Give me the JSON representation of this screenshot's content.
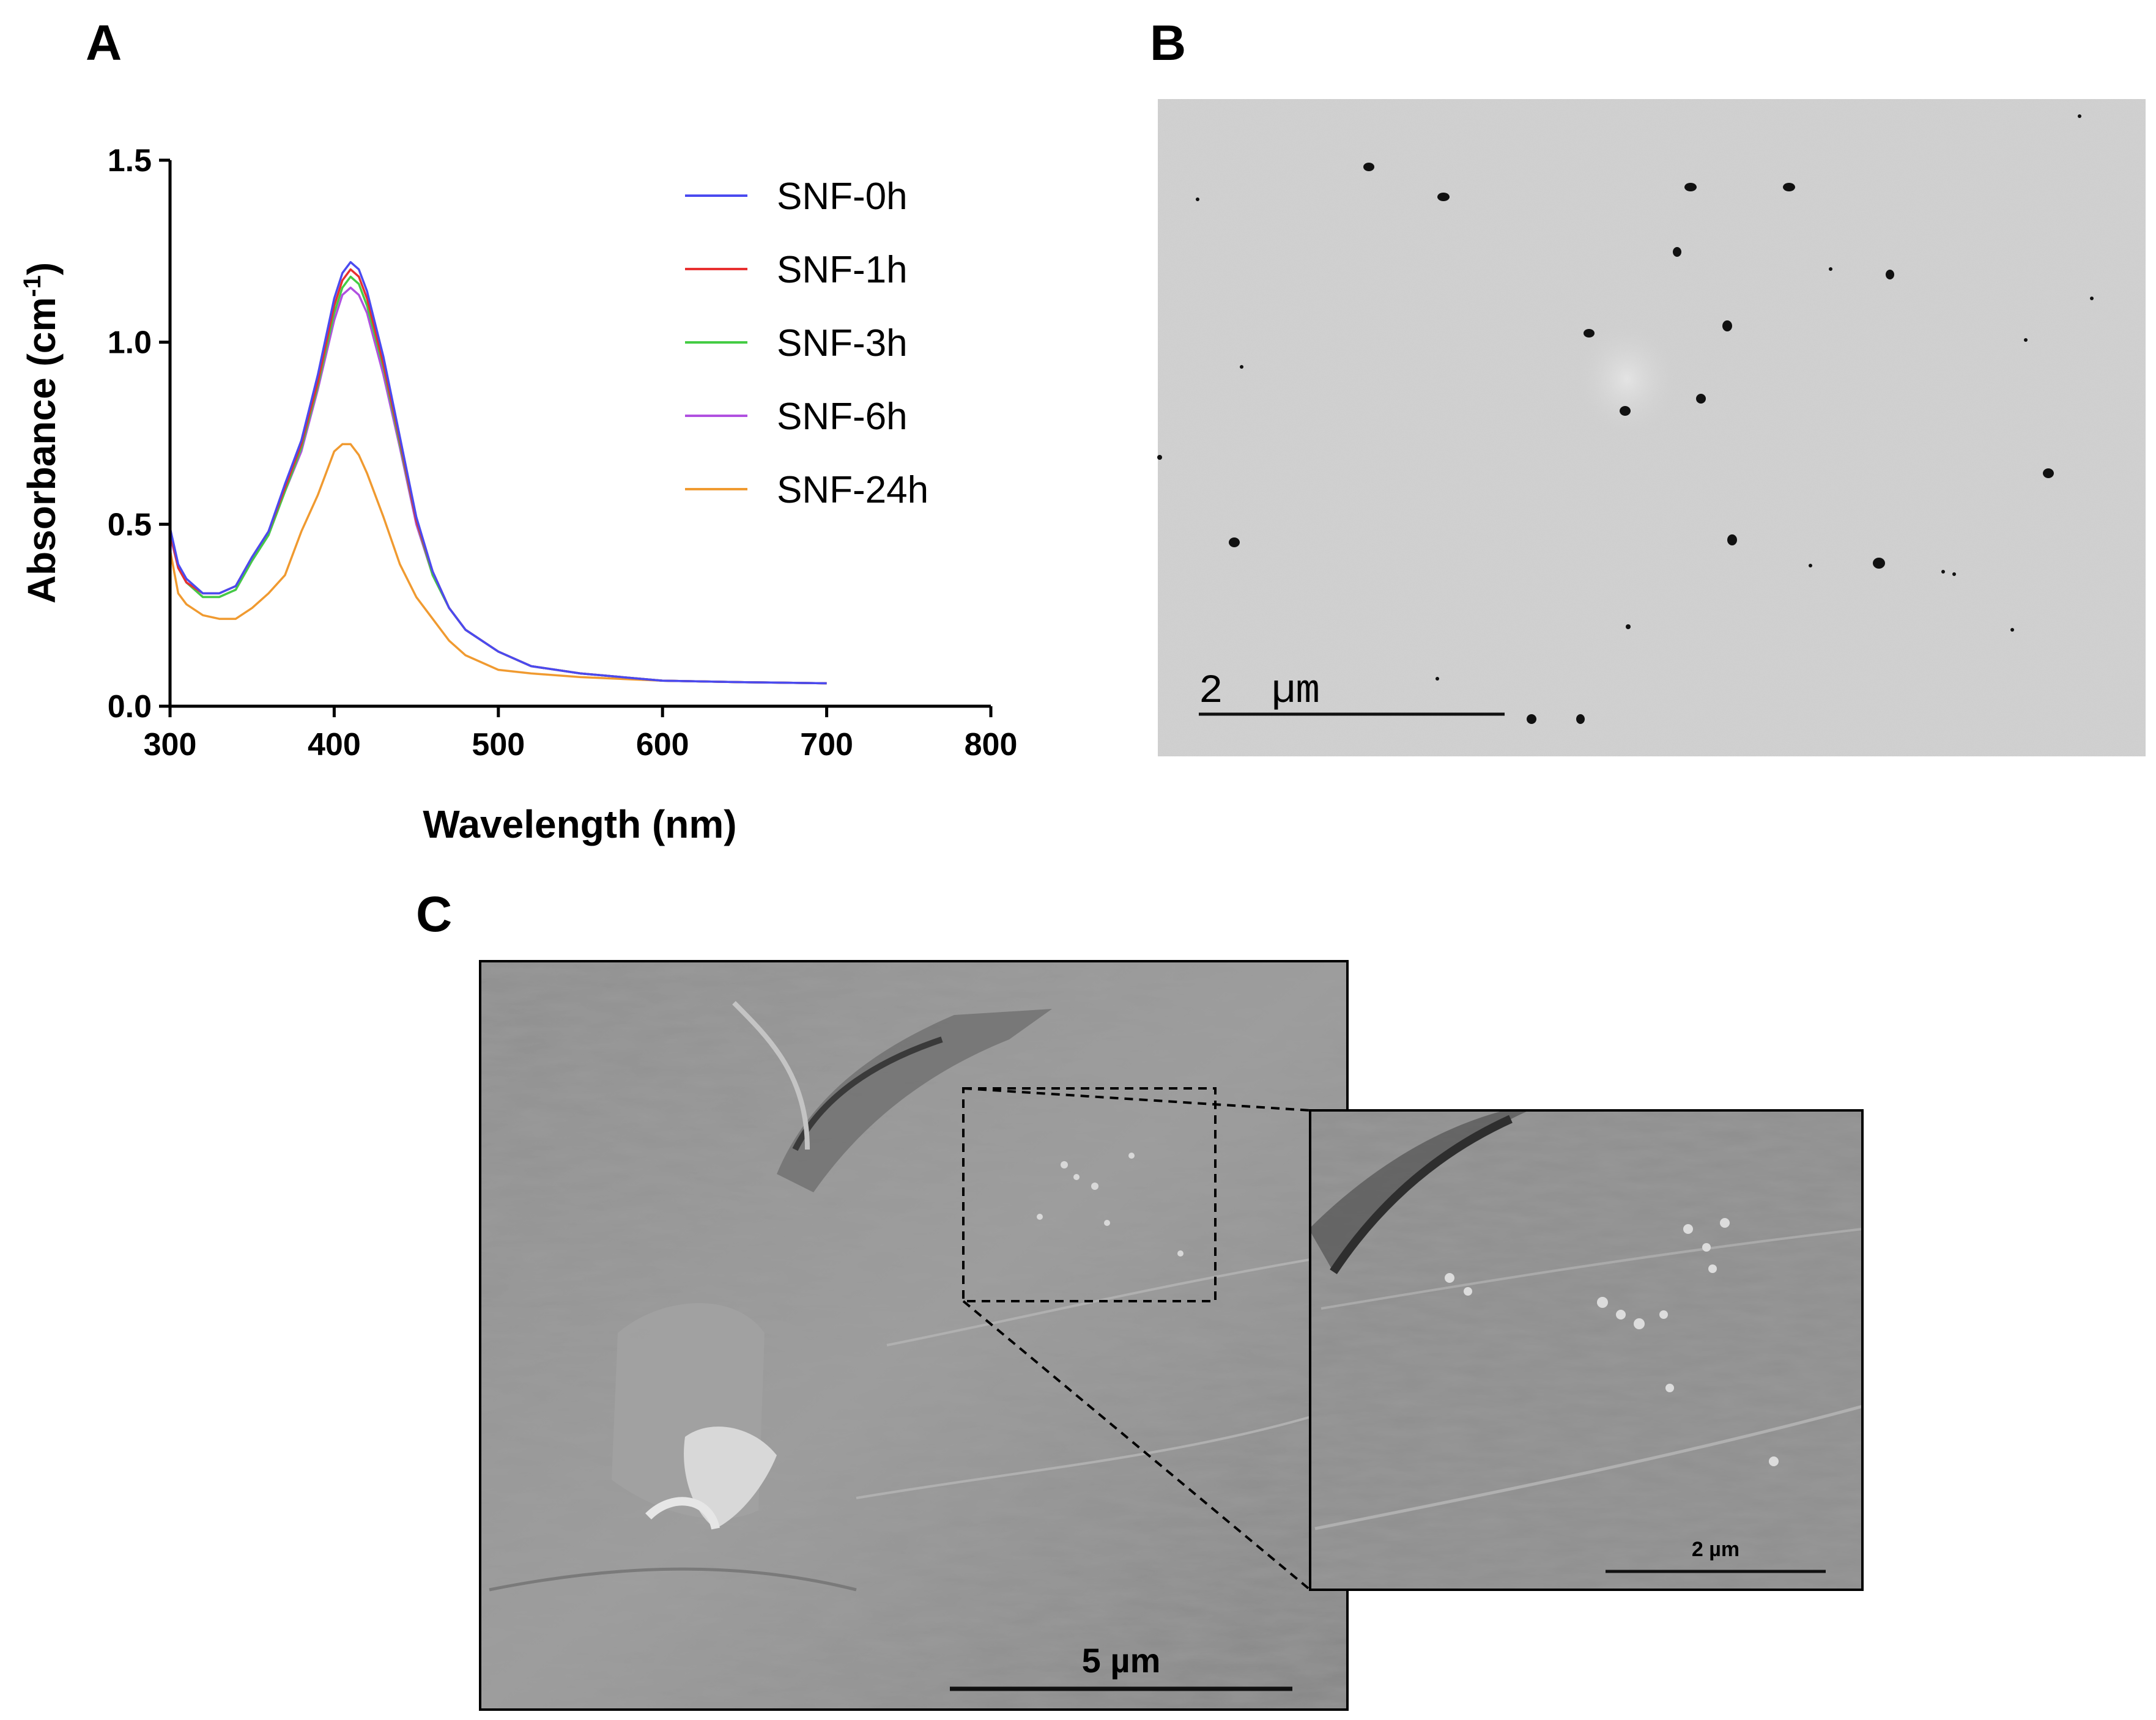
{
  "panels": {
    "a_label": "A",
    "b_label": "B",
    "c_label": "C"
  },
  "chart_data": {
    "type": "line",
    "title": "",
    "xlabel": "Wavelength (nm)",
    "ylabel_main": "Absorbance (cm",
    "ylabel_sup": "-1",
    "ylabel_close": ")",
    "xlim": [
      300,
      800
    ],
    "ylim": [
      0,
      1.5
    ],
    "xticks": [
      "300",
      "400",
      "500",
      "600",
      "700",
      "800"
    ],
    "yticks": [
      "0.0",
      "0.5",
      "1.0",
      "1.5"
    ],
    "legend_position": "top-right",
    "x": [
      300,
      305,
      310,
      320,
      330,
      340,
      350,
      360,
      370,
      380,
      390,
      400,
      405,
      410,
      415,
      420,
      430,
      440,
      450,
      460,
      470,
      480,
      500,
      520,
      550,
      600,
      650,
      700
    ],
    "series": [
      {
        "name": "SNF-0h",
        "color": "#4a4af0",
        "values": [
          0.49,
          0.39,
          0.35,
          0.31,
          0.31,
          0.33,
          0.41,
          0.48,
          0.61,
          0.73,
          0.91,
          1.12,
          1.19,
          1.22,
          1.2,
          1.14,
          0.96,
          0.74,
          0.52,
          0.37,
          0.27,
          0.21,
          0.15,
          0.11,
          0.09,
          0.07,
          0.066,
          0.063
        ]
      },
      {
        "name": "SNF-1h",
        "color": "#e83030",
        "values": [
          0.48,
          0.38,
          0.34,
          0.31,
          0.31,
          0.33,
          0.41,
          0.48,
          0.6,
          0.72,
          0.89,
          1.1,
          1.17,
          1.2,
          1.18,
          1.12,
          0.94,
          0.73,
          0.51,
          0.37,
          0.27,
          0.21,
          0.15,
          0.11,
          0.09,
          0.07,
          0.066,
          0.063
        ]
      },
      {
        "name": "SNF-3h",
        "color": "#44cc44",
        "values": [
          0.48,
          0.38,
          0.34,
          0.3,
          0.3,
          0.32,
          0.4,
          0.47,
          0.59,
          0.71,
          0.88,
          1.08,
          1.15,
          1.18,
          1.16,
          1.1,
          0.93,
          0.72,
          0.51,
          0.36,
          0.27,
          0.21,
          0.15,
          0.11,
          0.09,
          0.07,
          0.066,
          0.063
        ]
      },
      {
        "name": "SNF-6h",
        "color": "#b050e0",
        "values": [
          0.47,
          0.38,
          0.34,
          0.3,
          0.3,
          0.32,
          0.4,
          0.47,
          0.59,
          0.7,
          0.87,
          1.06,
          1.13,
          1.15,
          1.13,
          1.08,
          0.91,
          0.71,
          0.5,
          0.36,
          0.27,
          0.21,
          0.15,
          0.11,
          0.09,
          0.07,
          0.066,
          0.063
        ]
      },
      {
        "name": "SNF-24h",
        "color": "#f09a30",
        "values": [
          0.43,
          0.31,
          0.28,
          0.25,
          0.24,
          0.24,
          0.27,
          0.31,
          0.36,
          0.48,
          0.58,
          0.7,
          0.72,
          0.72,
          0.69,
          0.64,
          0.52,
          0.39,
          0.3,
          0.24,
          0.18,
          0.14,
          0.1,
          0.09,
          0.08,
          0.07,
          0.066,
          0.063
        ]
      }
    ]
  },
  "sem_b": {
    "scale_label": "2  µm"
  },
  "sem_c": {
    "scale_label": "5 µm",
    "inset_scale_label": "2 µm"
  }
}
